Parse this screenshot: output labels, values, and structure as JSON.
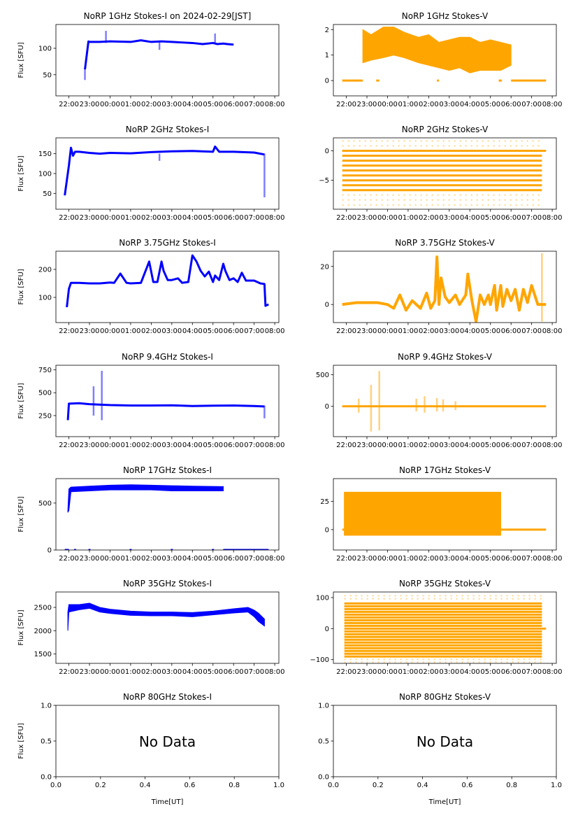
{
  "figure": {
    "title_prefix_note": "Figure of 14 panels (7 frequencies x Stokes-I/V)"
  },
  "chart_data": [
    {
      "id": "1ghz-i",
      "type": "scatter",
      "title": "NoRP 1GHz Stokes-I on 2024-02-29[JST]",
      "ylabel": "Flux [SFU]",
      "xlabel": "",
      "color": "#0000ff",
      "yticks": [
        50,
        100
      ],
      "ylim": [
        10,
        145
      ],
      "xticks": [
        "22:00",
        "23:00",
        "00:00",
        "01:00",
        "02:00",
        "03:00",
        "04:00",
        "05:00",
        "06:00",
        "07:00",
        "08:00"
      ],
      "xlim_hours": [
        -0.63,
        10.2
      ],
      "series": [
        {
          "name": "trace",
          "x": [
            0.78,
            0.95,
            1.0,
            1.5,
            2.0,
            3.0,
            3.5,
            4.0,
            4.5,
            5.0,
            5.5,
            6.0,
            6.5,
            7.0,
            7.2,
            7.5,
            7.7,
            8.0
          ],
          "y": [
            60,
            113,
            112,
            112,
            113,
            112,
            115,
            112,
            113,
            112,
            111,
            110,
            108,
            110,
            108,
            109,
            108,
            107
          ]
        }
      ],
      "spikes": [
        {
          "x": 1.8,
          "y": [
            110,
            133
          ]
        },
        {
          "x": 4.4,
          "y": [
            97,
            113
          ]
        },
        {
          "x": 7.1,
          "y": [
            109,
            128
          ]
        },
        {
          "x": 0.78,
          "y": [
            40,
            60
          ]
        }
      ]
    },
    {
      "id": "1ghz-v",
      "type": "scatter",
      "title": "NoRP 1GHz Stokes-V",
      "ylabel": "",
      "xlabel": "",
      "color": "#ffa500",
      "yticks": [
        0,
        1,
        2
      ],
      "ylim": [
        -0.6,
        2.2
      ],
      "xticks": [
        "22:00",
        "23:00",
        "00:00",
        "01:00",
        "02:00",
        "03:00",
        "04:00",
        "05:00",
        "06:00",
        "07:00",
        "08:00"
      ],
      "xlim_hours": [
        -0.63,
        10.2
      ],
      "band": {
        "x": [
          0.8,
          1.2,
          1.8,
          2.3,
          2.8,
          3.5,
          4.0,
          4.5,
          5.0,
          5.5,
          6.0,
          6.5,
          7.0,
          7.5,
          8.0
        ],
        "lo": [
          0.7,
          0.8,
          0.9,
          1.0,
          0.9,
          0.7,
          0.6,
          0.5,
          0.4,
          0.5,
          0.3,
          0.4,
          0.4,
          0.4,
          0.6
        ],
        "hi": [
          2.0,
          1.8,
          2.1,
          2.1,
          1.9,
          1.7,
          1.8,
          1.5,
          1.6,
          1.7,
          1.7,
          1.5,
          1.6,
          1.5,
          1.4
        ]
      },
      "zero_segments": [
        [
          -0.2,
          0.8
        ],
        [
          1.45,
          1.6
        ],
        [
          4.4,
          4.5
        ],
        [
          7.4,
          7.55
        ],
        [
          8.0,
          9.7
        ]
      ]
    },
    {
      "id": "2ghz-i",
      "type": "scatter",
      "title": "NoRP 2GHz Stokes-I",
      "ylabel": "Flux [SFU]",
      "xlabel": "",
      "color": "#0000ff",
      "yticks": [
        50,
        100,
        150
      ],
      "ylim": [
        10,
        190
      ],
      "xticks": [
        "22:00",
        "23:00",
        "00:00",
        "01:00",
        "02:00",
        "03:00",
        "04:00",
        "05:00",
        "06:00",
        "07:00",
        "08:00"
      ],
      "xlim_hours": [
        -0.63,
        10.2
      ],
      "series": [
        {
          "name": "trace",
          "x": [
            -0.2,
            0.0,
            0.1,
            0.2,
            0.3,
            0.5,
            1.0,
            1.5,
            2.0,
            3.0,
            4.0,
            5.0,
            6.0,
            7.0,
            7.1,
            7.3,
            8.0,
            9.0,
            9.5
          ],
          "y": [
            45,
            120,
            165,
            145,
            155,
            155,
            152,
            150,
            152,
            151,
            154,
            156,
            157,
            155,
            168,
            155,
            155,
            153,
            148
          ]
        }
      ],
      "spikes": [
        {
          "x": 4.4,
          "y": [
            132,
            150
          ]
        },
        {
          "x": 9.5,
          "y": [
            40,
            150
          ]
        }
      ]
    },
    {
      "id": "2ghz-v",
      "type": "scatter",
      "title": "NoRP 2GHz Stokes-V",
      "ylabel": "",
      "xlabel": "",
      "color": "#ffa500",
      "yticks": [
        -5,
        0
      ],
      "ylim": [
        -9.9,
        2.2
      ],
      "xticks": [
        "22:00",
        "23:00",
        "00:00",
        "01:00",
        "02:00",
        "03:00",
        "04:00",
        "05:00",
        "06:00",
        "07:00",
        "08:00"
      ],
      "xlim_hours": [
        -0.63,
        10.2
      ],
      "levels": [
        0,
        -0.83,
        -1.67,
        -2.5,
        -3.33,
        -4.17,
        -5.0,
        -5.83,
        -6.67
      ],
      "sparse_levels": [
        1.67,
        0.83,
        -7.5,
        -8.33,
        -9.17
      ],
      "x_range": [
        -0.2,
        9.5
      ],
      "zero_extends_to": 9.7
    },
    {
      "id": "375ghz-i",
      "type": "scatter",
      "title": "NoRP 3.75GHz Stokes-I",
      "ylabel": "Flux [SFU]",
      "xlabel": "",
      "color": "#0000ff",
      "yticks": [
        100,
        200
      ],
      "ylim": [
        10,
        265
      ],
      "xticks": [
        "22:00",
        "23:00",
        "00:00",
        "01:00",
        "02:00",
        "03:00",
        "04:00",
        "05:00",
        "06:00",
        "07:00",
        "08:00"
      ],
      "xlim_hours": [
        -0.63,
        10.2
      ],
      "series": [
        {
          "name": "trace",
          "x": [
            -0.1,
            0.0,
            0.1,
            0.5,
            1.0,
            1.5,
            2.0,
            2.2,
            2.5,
            2.8,
            3.0,
            3.5,
            3.9,
            4.1,
            4.3,
            4.5,
            4.6,
            4.8,
            5.0,
            5.3,
            5.5,
            5.8,
            6.0,
            6.2,
            6.4,
            6.6,
            6.8,
            7.0,
            7.1,
            7.3,
            7.5,
            7.6,
            7.8,
            8.0,
            8.2,
            8.4,
            8.6,
            9.0,
            9.3,
            9.5,
            9.55,
            9.7
          ],
          "y": [
            65,
            130,
            152,
            152,
            150,
            150,
            153,
            152,
            185,
            152,
            150,
            152,
            228,
            155,
            155,
            228,
            195,
            162,
            162,
            168,
            152,
            155,
            250,
            228,
            195,
            175,
            192,
            155,
            178,
            162,
            220,
            195,
            162,
            168,
            155,
            188,
            160,
            160,
            150,
            148,
            70,
            75
          ]
        }
      ]
    },
    {
      "id": "375ghz-v",
      "type": "scatter",
      "title": "NoRP 3.75GHz Stokes-V",
      "ylabel": "",
      "xlabel": "",
      "color": "#ffa500",
      "yticks": [
        0,
        20
      ],
      "ylim": [
        -9.5,
        28
      ],
      "xticks": [
        "22:00",
        "23:00",
        "00:00",
        "01:00",
        "02:00",
        "03:00",
        "04:00",
        "05:00",
        "06:00",
        "07:00",
        "08:00"
      ],
      "xlim_hours": [
        -0.63,
        10.2
      ],
      "series": [
        {
          "name": "trace",
          "x": [
            -0.2,
            0.5,
            1.0,
            1.5,
            2.0,
            2.3,
            2.6,
            2.9,
            3.2,
            3.6,
            3.9,
            4.1,
            4.3,
            4.4,
            4.5,
            4.6,
            4.8,
            5.0,
            5.3,
            5.5,
            5.8,
            5.9,
            6.1,
            6.3,
            6.5,
            6.7,
            6.9,
            7.0,
            7.2,
            7.3,
            7.5,
            7.6,
            7.8,
            8.0,
            8.2,
            8.4,
            8.6,
            8.8,
            9.0,
            9.3,
            9.5,
            9.7
          ],
          "y": [
            0,
            1,
            1,
            1,
            0,
            -2,
            5,
            -3,
            2,
            -2,
            6,
            -2,
            2,
            25,
            0,
            14,
            4,
            1,
            5,
            0,
            5,
            16,
            2,
            -9,
            5,
            0,
            5,
            0,
            10,
            -3,
            10,
            -1,
            8,
            2,
            8,
            -3,
            8,
            1,
            10,
            0,
            0,
            0
          ]
        }
      ],
      "spikes": [
        {
          "x": 9.5,
          "y": [
            -9,
            27
          ]
        }
      ]
    },
    {
      "id": "94ghz-i",
      "type": "scatter",
      "title": "NoRP 9.4GHz Stokes-I",
      "ylabel": "Flux [SFU]",
      "xlabel": "",
      "color": "#0000ff",
      "yticks": [
        250,
        500,
        750
      ],
      "ylim": [
        20,
        800
      ],
      "xticks": [
        "22:00",
        "23:00",
        "00:00",
        "01:00",
        "02:00",
        "03:00",
        "04:00",
        "05:00",
        "06:00",
        "07:00",
        "08:00"
      ],
      "xlim_hours": [
        -0.63,
        10.2
      ],
      "series": [
        {
          "name": "trace",
          "x": [
            -0.05,
            0.0,
            0.5,
            1.0,
            2.0,
            3.0,
            4.0,
            5.0,
            6.0,
            7.0,
            8.0,
            9.0,
            9.5
          ],
          "y": [
            200,
            380,
            385,
            375,
            365,
            360,
            360,
            362,
            355,
            358,
            360,
            355,
            350
          ]
        }
      ],
      "spikes": [
        {
          "x": 1.2,
          "y": [
            250,
            570
          ]
        },
        {
          "x": 1.6,
          "y": [
            200,
            740
          ]
        },
        {
          "x": 9.5,
          "y": [
            220,
            360
          ]
        }
      ]
    },
    {
      "id": "94ghz-v",
      "type": "scatter",
      "title": "NoRP 9.4GHz Stokes-V",
      "ylabel": "",
      "xlabel": "",
      "color": "#ffa500",
      "yticks": [
        0,
        500
      ],
      "ylim": [
        -480,
        650
      ],
      "xticks": [
        "22:00",
        "23:00",
        "00:00",
        "01:00",
        "02:00",
        "03:00",
        "04:00",
        "05:00",
        "06:00",
        "07:00",
        "08:00"
      ],
      "xlim_hours": [
        -0.63,
        10.2
      ],
      "baseline": {
        "x": [
          -0.2,
          9.7
        ],
        "y": 0
      },
      "spikes": [
        {
          "x": 0.6,
          "y": [
            -100,
            120
          ]
        },
        {
          "x": 1.2,
          "y": [
            -400,
            340
          ]
        },
        {
          "x": 1.6,
          "y": [
            -380,
            560
          ]
        },
        {
          "x": 3.4,
          "y": [
            -80,
            120
          ]
        },
        {
          "x": 3.8,
          "y": [
            -100,
            160
          ]
        },
        {
          "x": 4.4,
          "y": [
            -80,
            130
          ]
        },
        {
          "x": 4.7,
          "y": [
            -80,
            110
          ]
        },
        {
          "x": 5.3,
          "y": [
            -60,
            80
          ]
        }
      ]
    },
    {
      "id": "17ghz-i",
      "type": "scatter",
      "title": "NoRP 17GHz Stokes-I",
      "ylabel": "Flux [SFU]",
      "xlabel": "",
      "color": "#0000ff",
      "yticks": [
        0,
        500
      ],
      "ylim": [
        0,
        760
      ],
      "xticks": [
        "22:00",
        "23:00",
        "00:00",
        "01:00",
        "02:00",
        "03:00",
        "04:00",
        "05:00",
        "06:00",
        "07:00",
        "08:00"
      ],
      "xlim_hours": [
        -0.63,
        10.2
      ],
      "band": {
        "x": [
          -0.05,
          0.0,
          0.1,
          1.0,
          2.0,
          3.0,
          4.0,
          5.0,
          6.0,
          7.5
        ],
        "lo": [
          400,
          420,
          620,
          630,
          640,
          640,
          640,
          630,
          630,
          630
        ],
        "hi": [
          420,
          650,
          670,
          680,
          690,
          695,
          690,
          685,
          680,
          675
        ]
      },
      "zero_segments": [
        [
          -0.2,
          0.0
        ],
        [
          0.25,
          0.35
        ],
        [
          0.95,
          1.05
        ],
        [
          2.95,
          3.05
        ],
        [
          4.95,
          5.05
        ],
        [
          6.95,
          7.05
        ],
        [
          7.5,
          9.7
        ]
      ]
    },
    {
      "id": "17ghz-v",
      "type": "scatter",
      "title": "NoRP 17GHz Stokes-V",
      "ylabel": "",
      "xlabel": "",
      "color": "#ffa500",
      "yticks": [
        0,
        25
      ],
      "ylim": [
        -18,
        45
      ],
      "xticks": [
        "22:00",
        "23:00",
        "00:00",
        "01:00",
        "02:00",
        "03:00",
        "04:00",
        "05:00",
        "06:00",
        "07:00",
        "08:00"
      ],
      "xlim_hours": [
        -0.63,
        10.2
      ],
      "band": {
        "x": [
          -0.1,
          7.5
        ],
        "lo": [
          -5,
          -5
        ],
        "hi": [
          33,
          33
        ]
      },
      "zero_segments": [
        [
          -0.2,
          9.7
        ]
      ]
    },
    {
      "id": "35ghz-i",
      "type": "scatter",
      "title": "NoRP 35GHz Stokes-I",
      "ylabel": "Flux [SFU]",
      "xlabel": "",
      "color": "#0000ff",
      "yticks": [
        1500,
        2000,
        2500
      ],
      "ylim": [
        1300,
        2830
      ],
      "xticks": [
        "22:00",
        "23:00",
        "00:00",
        "01:00",
        "02:00",
        "03:00",
        "04:00",
        "05:00",
        "06:00",
        "07:00",
        "08:00"
      ],
      "xlim_hours": [
        -0.63,
        10.2
      ],
      "band": {
        "x": [
          -0.05,
          0.0,
          0.5,
          1.0,
          1.5,
          2.0,
          3.0,
          4.0,
          5.0,
          6.0,
          7.0,
          8.0,
          8.7,
          9.0,
          9.2,
          9.5
        ],
        "lo": [
          2000,
          2400,
          2450,
          2480,
          2400,
          2370,
          2330,
          2320,
          2320,
          2300,
          2340,
          2380,
          2400,
          2300,
          2200,
          2100
        ],
        "hi": [
          2400,
          2560,
          2560,
          2590,
          2500,
          2460,
          2420,
          2400,
          2400,
          2390,
          2420,
          2470,
          2500,
          2440,
          2380,
          2250
        ]
      }
    },
    {
      "id": "35ghz-v",
      "type": "scatter",
      "title": "NoRP 35GHz Stokes-V",
      "ylabel": "",
      "xlabel": "",
      "color": "#ffa500",
      "yticks": [
        -100,
        0,
        100
      ],
      "ylim": [
        -112,
        118
      ],
      "xticks": [
        "22:00",
        "23:00",
        "00:00",
        "01:00",
        "02:00",
        "03:00",
        "04:00",
        "05:00",
        "06:00",
        "07:00",
        "08:00"
      ],
      "xlim_hours": [
        -0.63,
        10.2
      ],
      "levels": [
        81,
        72,
        63,
        54,
        45,
        36,
        27,
        18,
        9,
        -9,
        -18,
        -27,
        -36,
        -45,
        -54,
        -63,
        -72,
        -81,
        -90
      ],
      "sparse_levels": [
        106,
        96,
        -99,
        -108
      ],
      "x_range": [
        -0.1,
        9.5
      ],
      "zero_extends_to": 9.7
    },
    {
      "id": "80ghz-i",
      "type": "empty",
      "title": "NoRP 80GHz Stokes-I",
      "ylabel": "Flux [SFU]",
      "xlabel": "Time[UT]",
      "yticks": [
        "0.0",
        "0.5",
        "1.0"
      ],
      "xticks": [
        "0.0",
        "0.2",
        "0.4",
        "0.6",
        "0.8",
        "1.0"
      ],
      "ylim": [
        0,
        1
      ],
      "xlim": [
        0,
        1
      ],
      "annotation": "No Data"
    },
    {
      "id": "80ghz-v",
      "type": "empty",
      "title": "NoRP 80GHz Stokes-V",
      "ylabel": "",
      "xlabel": "Time[UT]",
      "yticks": [
        "0.0",
        "0.5",
        "1.0"
      ],
      "xticks": [
        "0.0",
        "0.2",
        "0.4",
        "0.6",
        "0.8",
        "1.0"
      ],
      "ylim": [
        0,
        1
      ],
      "xlim": [
        0,
        1
      ],
      "annotation": "No Data"
    }
  ]
}
